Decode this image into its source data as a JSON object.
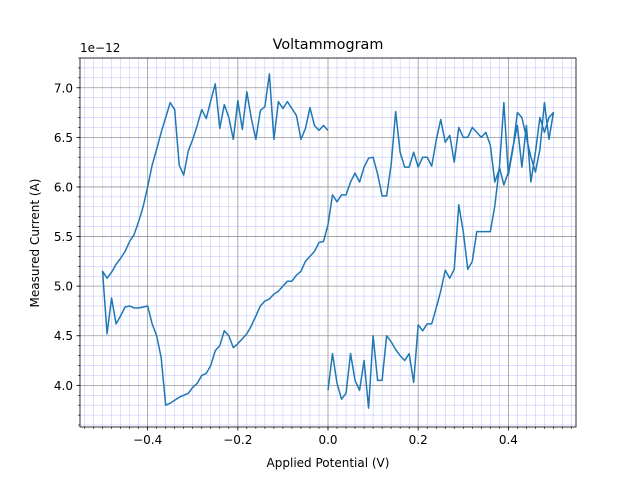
{
  "chart_data": {
    "type": "line",
    "title": "Voltammogram",
    "xlabel": "Applied Potential (V)",
    "ylabel": "Measured Current (A)",
    "y_offset_label": "1e−12",
    "y_scale_factor": 1e-12,
    "xlim": [
      -0.55,
      0.55
    ],
    "ylim": [
      3.58,
      7.3
    ],
    "x_ticks": [
      -0.4,
      -0.2,
      0.0,
      0.2,
      0.4
    ],
    "x_tick_labels": [
      "−0.4",
      "−0.2",
      "0.0",
      "0.2",
      "0.4"
    ],
    "y_ticks": [
      4.0,
      4.5,
      5.0,
      5.5,
      6.0,
      6.5,
      7.0
    ],
    "y_tick_labels": [
      "4.0",
      "4.5",
      "5.0",
      "5.5",
      "6.0",
      "6.5",
      "7.0"
    ],
    "grid": "major gray, minor blue",
    "line_color": "#1f77b4",
    "series": [
      {
        "x": [
          0.0,
          0.01,
          0.02,
          0.03,
          0.04,
          0.05,
          0.06,
          0.07,
          0.08,
          0.09,
          0.1,
          0.11,
          0.12,
          0.13,
          0.14,
          0.15,
          0.16,
          0.17,
          0.18,
          0.19,
          0.2,
          0.21,
          0.22,
          0.23,
          0.24,
          0.25,
          0.26,
          0.27,
          0.28,
          0.29,
          0.3,
          0.31,
          0.32,
          0.33,
          0.34,
          0.35,
          0.36,
          0.37,
          0.38,
          0.39,
          0.4,
          0.41,
          0.42,
          0.43,
          0.44,
          0.45,
          0.46,
          0.47,
          0.48,
          0.49,
          0.5,
          0.49,
          0.48,
          0.47,
          0.46,
          0.45,
          0.44,
          0.43,
          0.42,
          0.41,
          0.4,
          0.39,
          0.38,
          0.37,
          0.36,
          0.35,
          0.34,
          0.33,
          0.32,
          0.31,
          0.3,
          0.29,
          0.28,
          0.27,
          0.26,
          0.25,
          0.24,
          0.23,
          0.22,
          0.21,
          0.2,
          0.19,
          0.18,
          0.17,
          0.16,
          0.15,
          0.14,
          0.13,
          0.12,
          0.11,
          0.1,
          0.09,
          0.08,
          0.07,
          0.06,
          0.05,
          0.04,
          0.03,
          0.02,
          0.01,
          0.0,
          -0.01,
          -0.02,
          -0.03,
          -0.04,
          -0.05,
          -0.06,
          -0.07,
          -0.08,
          -0.09,
          -0.1,
          -0.11,
          -0.12,
          -0.13,
          -0.14,
          -0.15,
          -0.16,
          -0.17,
          -0.18,
          -0.19,
          -0.2,
          -0.21,
          -0.22,
          -0.23,
          -0.24,
          -0.25,
          -0.26,
          -0.27,
          -0.28,
          -0.29,
          -0.3,
          -0.31,
          -0.32,
          -0.33,
          -0.34,
          -0.35,
          -0.36,
          -0.37,
          -0.38,
          -0.39,
          -0.4,
          -0.41,
          -0.42,
          -0.43,
          -0.44,
          -0.45,
          -0.46,
          -0.47,
          -0.48,
          -0.49,
          -0.5,
          -0.49,
          -0.48,
          -0.47,
          -0.46,
          -0.45,
          -0.44,
          -0.43,
          -0.42,
          -0.41,
          -0.4,
          -0.39,
          -0.38,
          -0.37,
          -0.36,
          -0.35,
          -0.34,
          -0.33,
          -0.32,
          -0.31,
          -0.3,
          -0.29,
          -0.28,
          -0.27,
          -0.26,
          -0.25,
          -0.24,
          -0.23,
          -0.22,
          -0.21,
          -0.2,
          -0.19,
          -0.18,
          -0.17,
          -0.16,
          -0.15,
          -0.14,
          -0.13,
          -0.12,
          -0.11,
          -0.1,
          -0.09,
          -0.08,
          -0.07,
          -0.06,
          -0.05,
          -0.04,
          -0.03,
          -0.02,
          -0.01,
          0.0
        ],
        "y": [
          3.95,
          4.32,
          4.02,
          3.86,
          3.92,
          4.32,
          4.05,
          3.95,
          4.25,
          3.77,
          4.5,
          4.05,
          4.05,
          4.5,
          4.44,
          4.36,
          4.3,
          4.25,
          4.32,
          4.03,
          4.61,
          4.55,
          4.62,
          4.62,
          4.78,
          4.95,
          5.16,
          5.08,
          5.17,
          5.82,
          5.55,
          5.17,
          5.25,
          5.55,
          5.55,
          5.55,
          5.55,
          5.81,
          6.2,
          6.02,
          6.15,
          6.4,
          6.62,
          6.2,
          6.62,
          6.05,
          6.35,
          6.7,
          6.55,
          6.7,
          6.75,
          6.48,
          6.85,
          6.38,
          6.15,
          6.3,
          6.5,
          6.7,
          6.75,
          6.38,
          6.12,
          6.85,
          6.18,
          6.05,
          6.42,
          6.55,
          6.5,
          6.55,
          6.6,
          6.5,
          6.5,
          6.6,
          6.25,
          6.52,
          6.45,
          6.68,
          6.47,
          6.21,
          6.3,
          6.3,
          6.2,
          6.35,
          6.2,
          6.2,
          6.35,
          6.76,
          6.22,
          5.91,
          5.91,
          6.13,
          6.3,
          6.29,
          6.2,
          6.05,
          6.14,
          6.05,
          5.92,
          5.92,
          5.85,
          5.92,
          5.62,
          5.45,
          5.44,
          5.35,
          5.3,
          5.25,
          5.15,
          5.11,
          5.05,
          5.05,
          5.0,
          4.95,
          4.92,
          4.87,
          4.85,
          4.8,
          4.7,
          4.6,
          4.52,
          4.47,
          4.42,
          4.38,
          4.5,
          4.55,
          4.4,
          4.35,
          4.2,
          4.12,
          4.1,
          4.02,
          3.98,
          3.92,
          3.9,
          3.88,
          3.85,
          3.82,
          3.8,
          4.28,
          4.5,
          4.62,
          4.8,
          4.79,
          4.78,
          4.78,
          4.8,
          4.79,
          4.7,
          4.62,
          4.88,
          4.52,
          5.15,
          5.08,
          5.14,
          5.22,
          5.28,
          5.35,
          5.45,
          5.52,
          5.65,
          5.8,
          6.0,
          6.22,
          6.38,
          6.55,
          6.7,
          6.85,
          6.78,
          6.22,
          6.12,
          6.36,
          6.48,
          6.62,
          6.78,
          6.69,
          6.87,
          7.04,
          6.59,
          6.83,
          6.7,
          6.48,
          6.87,
          6.58,
          6.96,
          6.69,
          6.48,
          6.77,
          6.81,
          7.14,
          6.48,
          6.86,
          6.79,
          6.86,
          6.79,
          6.72,
          6.48,
          6.59,
          6.8,
          6.62,
          6.57,
          6.62,
          6.57
        ]
      }
    ]
  }
}
